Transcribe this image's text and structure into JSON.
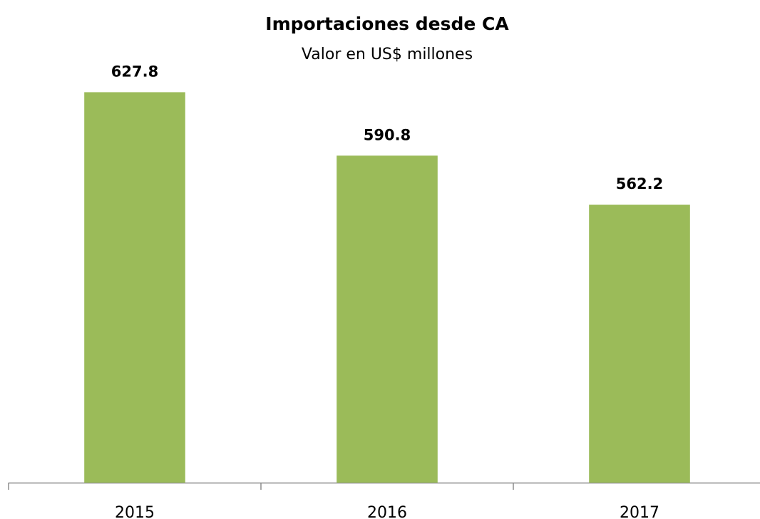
{
  "chart_data": {
    "type": "bar",
    "title": "Importaciones desde CA",
    "subtitle": "Valor en US$ millones",
    "categories": [
      "2015",
      "2016",
      "2017"
    ],
    "values": [
      627.8,
      590.8,
      562.2
    ],
    "color": "#9bbb59",
    "ylim": [
      400,
      650
    ]
  }
}
